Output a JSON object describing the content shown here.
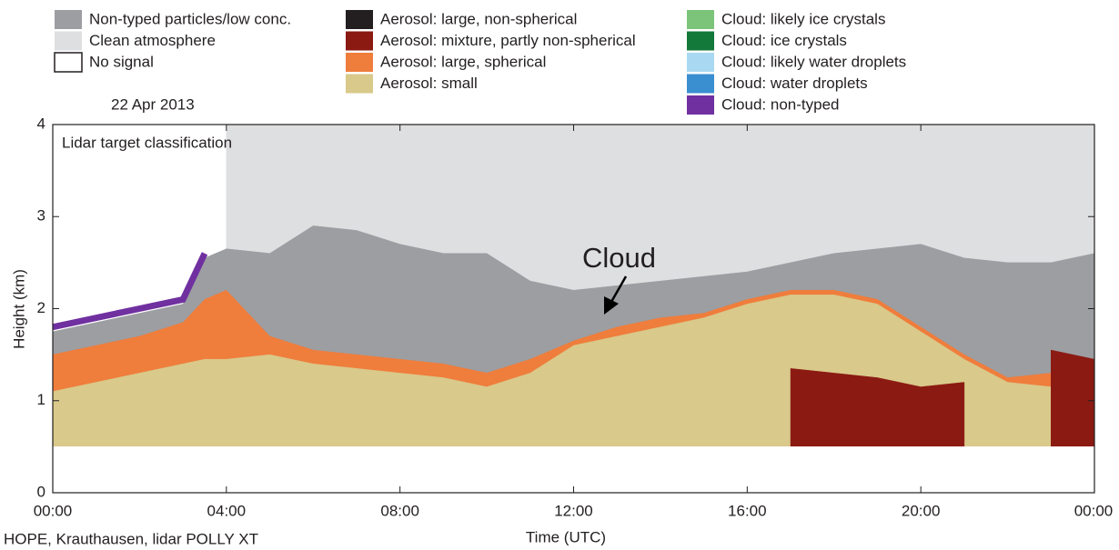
{
  "chart_data": {
    "type": "area",
    "date": "22 Apr 2013",
    "title": "Lidar target classification",
    "ylabel": "Height (km)",
    "xlabel": "Time (UTC)",
    "caption": "HOPE, Krauthausen, lidar POLLY XT",
    "annotation": "Cloud",
    "xlim": [
      0,
      24
    ],
    "xticks": [
      {
        "value": 0,
        "label": "00:00"
      },
      {
        "value": 4,
        "label": "04:00"
      },
      {
        "value": 8,
        "label": "08:00"
      },
      {
        "value": 12,
        "label": "12:00"
      },
      {
        "value": 16,
        "label": "16:00"
      },
      {
        "value": 20,
        "label": "20:00"
      },
      {
        "value": 24,
        "label": "00:00"
      }
    ],
    "ylim": [
      0,
      4
    ],
    "yticks": [
      0,
      1,
      2,
      3,
      4
    ],
    "x": [
      0,
      1,
      2,
      3,
      3.5,
      4,
      5,
      6,
      7,
      8,
      9,
      10,
      11,
      12,
      13,
      14,
      15,
      16,
      17,
      18,
      19,
      20,
      21,
      22,
      23,
      24
    ],
    "series": [
      {
        "name": "Non-typed particles/low conc.",
        "color": "#9c9ea2",
        "values": [
          1.75,
          1.85,
          1.95,
          2.05,
          2.55,
          2.65,
          2.6,
          2.9,
          2.85,
          2.7,
          2.6,
          2.6,
          2.3,
          2.2,
          2.25,
          2.3,
          2.35,
          2.4,
          2.5,
          2.6,
          2.65,
          2.7,
          2.55,
          2.5,
          2.5,
          2.6
        ]
      },
      {
        "name": "Clean atmosphere",
        "color": "#dedfe0",
        "values": [
          null,
          null,
          null,
          null,
          null,
          4,
          4,
          4,
          4,
          4,
          4,
          4,
          4,
          4,
          4,
          4,
          4,
          4,
          4,
          4,
          4,
          4,
          4,
          4,
          4,
          4
        ]
      },
      {
        "name": "No signal",
        "color": "#ffffff",
        "values": [
          0.5,
          0.5,
          0.5,
          0.5,
          0.5,
          0.5,
          0.5,
          0.5,
          0.5,
          0.5,
          0.5,
          0.5,
          0.5,
          0.5,
          0.5,
          0.5,
          0.5,
          0.5,
          0.5,
          0.5,
          0.5,
          0.5,
          0.5,
          0.5,
          0.5,
          0.5
        ]
      },
      {
        "name": "Aerosol: large, non-spherical",
        "color": "#231f20"
      },
      {
        "name": "Aerosol: mixture, partly non-spherical",
        "color": "#8b1a12",
        "values": [
          null,
          null,
          null,
          null,
          null,
          null,
          null,
          null,
          null,
          null,
          null,
          null,
          null,
          null,
          null,
          null,
          null,
          null,
          1.35,
          1.3,
          1.25,
          1.15,
          1.2,
          null,
          1.55,
          1.45
        ]
      },
      {
        "name": "Aerosol: large, spherical",
        "color": "#ef7d3c",
        "values": [
          1.5,
          1.6,
          1.7,
          1.85,
          2.1,
          2.2,
          1.7,
          1.55,
          1.5,
          1.45,
          1.4,
          1.3,
          1.45,
          1.65,
          1.8,
          1.9,
          1.95,
          2.1,
          2.2,
          2.2,
          2.1,
          1.8,
          1.5,
          1.25,
          1.3,
          1.25
        ]
      },
      {
        "name": "Aerosol: small",
        "color": "#d9c98a",
        "values": [
          1.1,
          1.2,
          1.3,
          1.4,
          1.45,
          1.45,
          1.5,
          1.4,
          1.35,
          1.3,
          1.25,
          1.15,
          1.3,
          1.6,
          1.7,
          1.8,
          1.9,
          2.05,
          2.15,
          2.15,
          2.05,
          1.75,
          1.45,
          1.2,
          1.15,
          1.15
        ]
      },
      {
        "name": "Cloud: likely ice crystals",
        "color": "#7cc47a"
      },
      {
        "name": "Cloud: ice crystals",
        "color": "#13793a"
      },
      {
        "name": "Cloud: likely water droplets",
        "color": "#a9d9f2"
      },
      {
        "name": "Cloud: water droplets",
        "color": "#3a8fd0"
      },
      {
        "name": "Cloud: non-typed",
        "color": "#7030a0",
        "style": "line",
        "values": [
          1.8,
          1.9,
          2.0,
          2.1,
          2.6,
          null,
          null,
          null,
          null,
          null,
          null,
          null,
          null,
          null,
          null,
          null,
          null,
          null,
          null,
          null,
          null,
          null,
          null,
          null,
          null,
          null
        ]
      }
    ]
  }
}
